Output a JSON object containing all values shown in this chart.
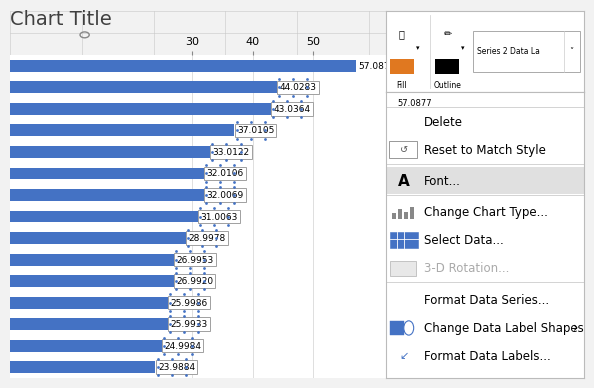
{
  "title": "Chart Title",
  "bar_values": [
    57.0877,
    44.0283,
    43.0364,
    37.0105,
    33.0122,
    32.0106,
    32.0069,
    31.0063,
    28.9978,
    26.9953,
    26.992,
    25.9986,
    25.9933,
    24.9984,
    23.9884
  ],
  "bar_color": "#4472C4",
  "bar_height": 0.55,
  "x_ticks": [
    30,
    40,
    50
  ],
  "bg_color": "#F2F2F2",
  "chart_bg": "#FFFFFF",
  "grid_color": "#D9D9D9",
  "label_font_size": 6.5,
  "title_font_size": 14,
  "axis_tick_font_size": 8,
  "context_menu_items": [
    {
      "text": "Delete",
      "has_icon": false,
      "separator_before": false,
      "separator_after": false,
      "greyed": false,
      "highlighted": false
    },
    {
      "text": "Reset to Match Style",
      "has_icon": true,
      "separator_before": false,
      "separator_after": false,
      "greyed": false,
      "highlighted": false
    },
    {
      "text": "Font...",
      "has_icon": true,
      "separator_before": true,
      "separator_after": true,
      "greyed": false,
      "highlighted": true
    },
    {
      "text": "Change Chart Type...",
      "has_icon": true,
      "separator_before": false,
      "separator_after": false,
      "greyed": false,
      "highlighted": false
    },
    {
      "text": "Select Data...",
      "has_icon": true,
      "separator_before": false,
      "separator_after": false,
      "greyed": false,
      "highlighted": false
    },
    {
      "text": "3-D Rotation...",
      "has_icon": true,
      "separator_before": false,
      "separator_after": true,
      "greyed": true,
      "highlighted": false
    },
    {
      "text": "Format Data Series...",
      "has_icon": false,
      "separator_before": false,
      "separator_after": false,
      "greyed": false,
      "highlighted": false
    },
    {
      "text": "Change Data Label Shapes",
      "has_icon": true,
      "separator_before": false,
      "separator_after": false,
      "greyed": false,
      "highlighted": false,
      "arrow": true
    },
    {
      "text": "Format Data Labels...",
      "has_icon": true,
      "separator_before": false,
      "separator_after": false,
      "greyed": false,
      "highlighted": false
    }
  ],
  "menu_font_size": 8.5,
  "toolbar_bg": "#F0F0F0",
  "menu_bg": "#FFFFFF",
  "highlight_color": "#E0E0E0",
  "separator_color": "#CCCCCC",
  "grey_text": "#AAAAAA",
  "icon_blue": "#4472C4",
  "icon_grey": "#888888"
}
